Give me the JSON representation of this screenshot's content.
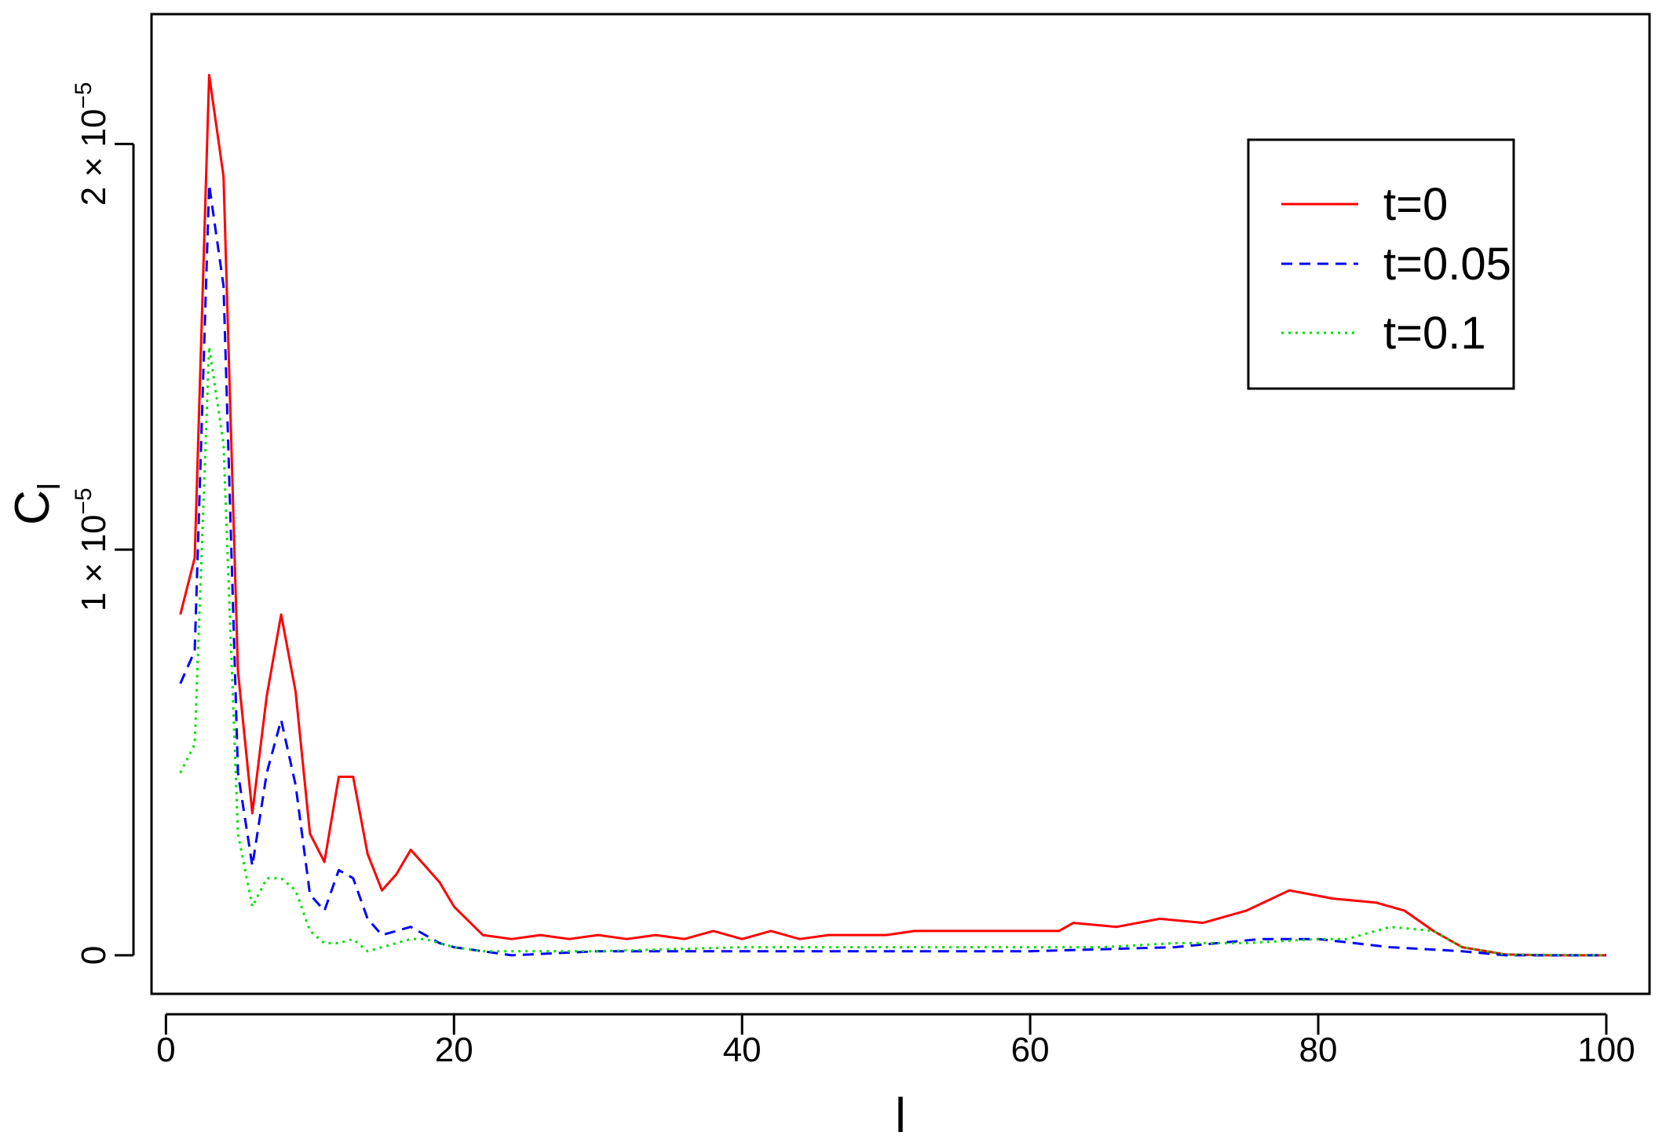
{
  "chart_data": {
    "type": "line",
    "xlabel": "l",
    "ylabel": "C",
    "ylabel_subscript": "l",
    "xlim": [
      -1,
      103
    ],
    "ylim": [
      -9.5e-07,
      2.32e-05
    ],
    "x_ticks": [
      0,
      20,
      40,
      60,
      80,
      100
    ],
    "x_tick_labels": [
      "0",
      "20",
      "40",
      "60",
      "80",
      "100"
    ],
    "y_ticks": [
      0,
      1e-05,
      2e-05
    ],
    "y_tick_labels": [
      {
        "mantissa": "0",
        "exponent": ""
      },
      {
        "mantissa": "1 × 10",
        "exponent": "−5"
      },
      {
        "mantissa": "2 × 10",
        "exponent": "−5"
      }
    ],
    "grid": false,
    "legend_position": "top-right",
    "series": [
      {
        "name": "t=0",
        "color": "#ff0000",
        "dash": "solid",
        "x": [
          1,
          2,
          3,
          4,
          5,
          6,
          7,
          8,
          9,
          10,
          11,
          12,
          13,
          14,
          15,
          16,
          17,
          18,
          19,
          20,
          22,
          24,
          26,
          28,
          30,
          32,
          34,
          36,
          38,
          40,
          42,
          44,
          46,
          48,
          50,
          52,
          54,
          56,
          58,
          60,
          62,
          63,
          66,
          69,
          72,
          75,
          78,
          81,
          84,
          86,
          88,
          90,
          93,
          96,
          100
        ],
        "y": [
          8.4e-06,
          9.8e-06,
          2.17e-05,
          1.92e-05,
          7e-06,
          3.5e-06,
          6.4e-06,
          8.4e-06,
          6.5e-06,
          3e-06,
          2.3e-06,
          4.4e-06,
          4.4e-06,
          2.5e-06,
          1.6e-06,
          2e-06,
          2.6e-06,
          2.2e-06,
          1.8e-06,
          1.2e-06,
          5e-07,
          4e-07,
          5e-07,
          4e-07,
          5e-07,
          4e-07,
          5e-07,
          4e-07,
          6e-07,
          4e-07,
          6e-07,
          4e-07,
          5e-07,
          5e-07,
          5e-07,
          6e-07,
          6e-07,
          6e-07,
          6e-07,
          6e-07,
          6e-07,
          8e-07,
          7e-07,
          9e-07,
          8e-07,
          1.1e-06,
          1.6e-06,
          1.4e-06,
          1.3e-06,
          1.1e-06,
          6e-07,
          2e-07,
          2e-08,
          0.0,
          0.0
        ]
      },
      {
        "name": "t=0.05",
        "color": "#0000ff",
        "dash": "dashed",
        "x": [
          1,
          2,
          3,
          4,
          5,
          6,
          7,
          8,
          9,
          10,
          11,
          12,
          13,
          14,
          15,
          16,
          17,
          18,
          19,
          20,
          22,
          24,
          30,
          40,
          50,
          60,
          70,
          76,
          80,
          85,
          90,
          93,
          100
        ],
        "y": [
          6.7e-06,
          7.5e-06,
          1.9e-05,
          1.65e-05,
          4.5e-06,
          2.2e-06,
          4.5e-06,
          5.8e-06,
          4.2e-06,
          1.5e-06,
          1.1e-06,
          2.1e-06,
          1.9e-06,
          9e-07,
          5e-07,
          6e-07,
          7e-07,
          5e-07,
          3e-07,
          2e-07,
          1e-07,
          0.0,
          1e-07,
          1e-07,
          1e-07,
          1e-07,
          2e-07,
          4e-07,
          4e-07,
          2e-07,
          1e-07,
          0.0,
          0.0
        ]
      },
      {
        "name": "t=0.1",
        "color": "#00e000",
        "dash": "dotted",
        "x": [
          1,
          2,
          3,
          4,
          5,
          6,
          7,
          8,
          9,
          10,
          11,
          12,
          13,
          14,
          15,
          16,
          17,
          18,
          19,
          20,
          22,
          30,
          40,
          50,
          60,
          65,
          70,
          75,
          80,
          82,
          85,
          88,
          90,
          93,
          100
        ],
        "y": [
          4.5e-06,
          5.2e-06,
          1.5e-05,
          1.26e-05,
          3e-06,
          1.2e-06,
          1.9e-06,
          1.9e-06,
          1.6e-06,
          6e-07,
          3e-07,
          3e-07,
          4e-07,
          1e-07,
          2e-07,
          3e-07,
          4e-07,
          4e-07,
          3e-07,
          2e-07,
          1e-07,
          1e-07,
          2e-07,
          2e-07,
          2e-07,
          2e-07,
          3e-07,
          3e-07,
          4e-07,
          4e-07,
          7e-07,
          6e-07,
          2e-07,
          2e-08,
          0.0
        ]
      }
    ]
  }
}
